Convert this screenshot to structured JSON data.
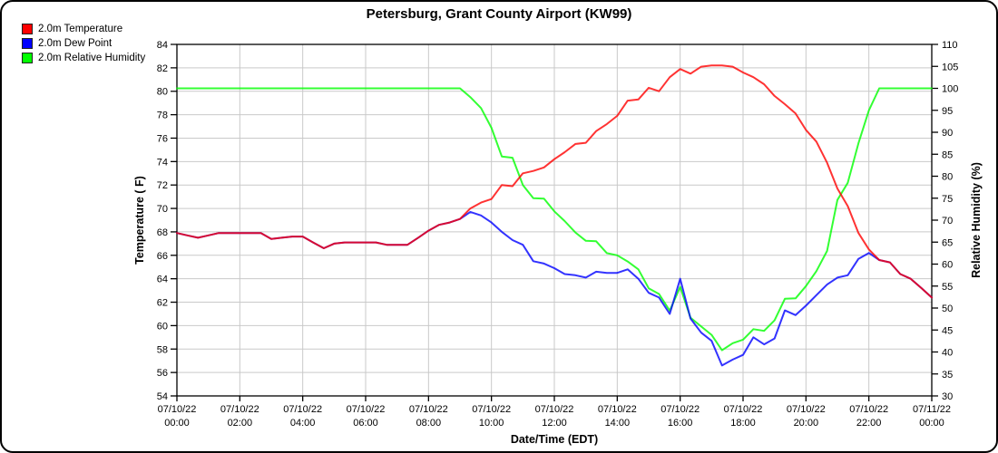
{
  "title": "Petersburg, Grant County Airport (KW99)",
  "legend": [
    {
      "label": "2.0m Temperature",
      "color": "#ff0000",
      "icon": "red-square-swatch"
    },
    {
      "label": "2.0m Dew Point",
      "color": "#0000ff",
      "icon": "blue-square-swatch"
    },
    {
      "label": "2.0m Relative Humidity",
      "color": "#00ff00",
      "icon": "green-square-swatch"
    }
  ],
  "colors": {
    "grid": "#c9c9c9",
    "axis": "#000000",
    "background": "#ffffff",
    "temperature": "#ff0000",
    "dew_point": "#0000ff",
    "humidity": "#00ff00"
  },
  "chart_data": {
    "type": "line",
    "title": "Petersburg, Grant County Airport (KW99)",
    "xlabel": "Date/Time (EDT)",
    "ylabel_left": "Temperature ( F)",
    "ylabel_right": "Relative Humidity (%)",
    "grid": true,
    "legend_position": "top-left",
    "y_left": {
      "min": 54,
      "max": 84,
      "tick_values": [
        54,
        56,
        58,
        60,
        62,
        64,
        66,
        68,
        70,
        72,
        74,
        76,
        78,
        80,
        82,
        84
      ]
    },
    "y_right": {
      "min": 30,
      "max": 110,
      "tick_values": [
        30,
        35,
        40,
        45,
        50,
        55,
        60,
        65,
        70,
        75,
        80,
        85,
        90,
        95,
        100,
        105,
        110
      ]
    },
    "x_axis": {
      "range_hours": [
        0,
        24
      ],
      "ticks": [
        {
          "hour": 0,
          "date": "07/10/22",
          "time": "00:00"
        },
        {
          "hour": 2,
          "date": "07/10/22",
          "time": "02:00"
        },
        {
          "hour": 4,
          "date": "07/10/22",
          "time": "04:00"
        },
        {
          "hour": 6,
          "date": "07/10/22",
          "time": "06:00"
        },
        {
          "hour": 8,
          "date": "07/10/22",
          "time": "08:00"
        },
        {
          "hour": 10,
          "date": "07/10/22",
          "time": "10:00"
        },
        {
          "hour": 12,
          "date": "07/10/22",
          "time": "12:00"
        },
        {
          "hour": 14,
          "date": "07/10/22",
          "time": "14:00"
        },
        {
          "hour": 16,
          "date": "07/10/22",
          "time": "16:00"
        },
        {
          "hour": 18,
          "date": "07/10/22",
          "time": "18:00"
        },
        {
          "hour": 20,
          "date": "07/10/22",
          "time": "20:00"
        },
        {
          "hour": 22,
          "date": "07/10/22",
          "time": "22:00"
        },
        {
          "hour": 24,
          "date": "07/11/22",
          "time": "00:00"
        }
      ]
    },
    "x_hours": [
      0,
      0.33,
      0.67,
      1,
      1.33,
      1.67,
      2,
      2.33,
      2.67,
      3,
      3.33,
      3.67,
      4,
      4.33,
      4.67,
      5,
      5.33,
      5.67,
      6,
      6.33,
      6.67,
      7,
      7.33,
      7.67,
      8,
      8.33,
      8.67,
      9,
      9.33,
      9.67,
      10,
      10.33,
      10.67,
      11,
      11.33,
      11.67,
      12,
      12.33,
      12.67,
      13,
      13.33,
      13.67,
      14,
      14.33,
      14.67,
      15,
      15.33,
      15.67,
      16,
      16.33,
      16.67,
      17,
      17.33,
      17.67,
      18,
      18.33,
      18.67,
      19,
      19.33,
      19.67,
      20,
      20.33,
      20.67,
      21,
      21.33,
      21.67,
      22,
      22.33,
      22.67,
      23,
      23.33,
      23.67,
      24
    ],
    "series": [
      {
        "name": "2.0m Temperature",
        "axis": "left",
        "color": "#ff0000",
        "values": [
          67.9,
          67.7,
          67.5,
          67.7,
          67.9,
          67.9,
          67.9,
          67.9,
          67.9,
          67.4,
          67.5,
          67.6,
          67.6,
          67.1,
          66.6,
          67.0,
          67.1,
          67.1,
          67.1,
          67.1,
          66.9,
          66.9,
          66.9,
          67.5,
          68.1,
          68.6,
          68.8,
          69.1,
          70.0,
          70.5,
          70.8,
          72.0,
          71.9,
          73.0,
          73.2,
          73.5,
          74.2,
          74.8,
          75.5,
          75.6,
          76.6,
          77.2,
          77.9,
          79.2,
          79.3,
          80.3,
          80.0,
          81.2,
          81.9,
          81.5,
          82.1,
          82.2,
          82.2,
          82.1,
          81.6,
          81.2,
          80.6,
          79.6,
          78.9,
          78.1,
          76.7,
          75.7,
          73.9,
          71.7,
          70.2,
          67.9,
          66.5,
          65.6,
          65.4,
          64.4,
          64.0,
          63.2,
          62.4
        ]
      },
      {
        "name": "2.0m Dew Point",
        "axis": "left",
        "color": "#0000ff",
        "values": [
          67.9,
          67.7,
          67.5,
          67.7,
          67.9,
          67.9,
          67.9,
          67.9,
          67.9,
          67.4,
          67.5,
          67.6,
          67.6,
          67.1,
          66.6,
          67.0,
          67.1,
          67.1,
          67.1,
          67.1,
          66.9,
          66.9,
          66.9,
          67.5,
          68.1,
          68.6,
          68.8,
          69.1,
          69.7,
          69.4,
          68.8,
          68.0,
          67.3,
          66.9,
          65.5,
          65.3,
          64.9,
          64.4,
          64.3,
          64.1,
          64.6,
          64.5,
          64.5,
          64.8,
          64.0,
          62.8,
          62.4,
          61.0,
          64.0,
          60.6,
          59.4,
          58.7,
          56.6,
          57.1,
          57.5,
          59.0,
          58.4,
          58.9,
          61.3,
          60.9,
          61.7,
          62.6,
          63.5,
          64.1,
          64.3,
          65.7,
          66.2,
          65.6,
          65.4,
          64.4,
          64.0,
          63.2,
          62.4
        ]
      },
      {
        "name": "2.0m Relative Humidity",
        "axis": "right",
        "color": "#00ff00",
        "values": [
          100,
          100,
          100,
          100,
          100,
          100,
          100,
          100,
          100,
          100,
          100,
          100,
          100,
          100,
          100,
          100,
          100,
          100,
          100,
          100,
          100,
          100,
          100,
          100,
          100,
          100,
          100,
          100,
          98,
          95.5,
          91,
          84.5,
          84.2,
          78,
          75,
          74.9,
          72,
          69.8,
          67.2,
          65.3,
          65.2,
          62.5,
          62,
          60.6,
          58.8,
          54.5,
          53.2,
          49.4,
          54.8,
          47.8,
          45.8,
          43.9,
          40.4,
          42,
          42.8,
          45.2,
          44.8,
          47.2,
          52.1,
          52.2,
          55,
          58.4,
          63,
          74.6,
          78.5,
          87.5,
          95,
          100,
          100,
          100,
          100,
          100,
          100
        ]
      }
    ]
  }
}
